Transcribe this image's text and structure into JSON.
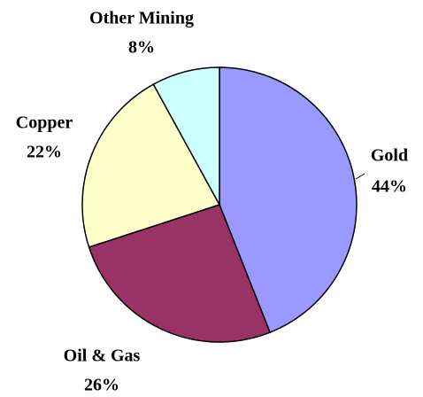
{
  "chart_data": {
    "type": "pie",
    "categories": [
      "Gold",
      "Oil & Gas",
      "Copper",
      "Other Mining"
    ],
    "values": [
      44,
      26,
      22,
      8
    ],
    "value_labels": [
      "44%",
      "26%",
      "22%",
      "8%"
    ],
    "colors": [
      "#9999ff",
      "#993366",
      "#ffffcc",
      "#ccffff"
    ]
  }
}
